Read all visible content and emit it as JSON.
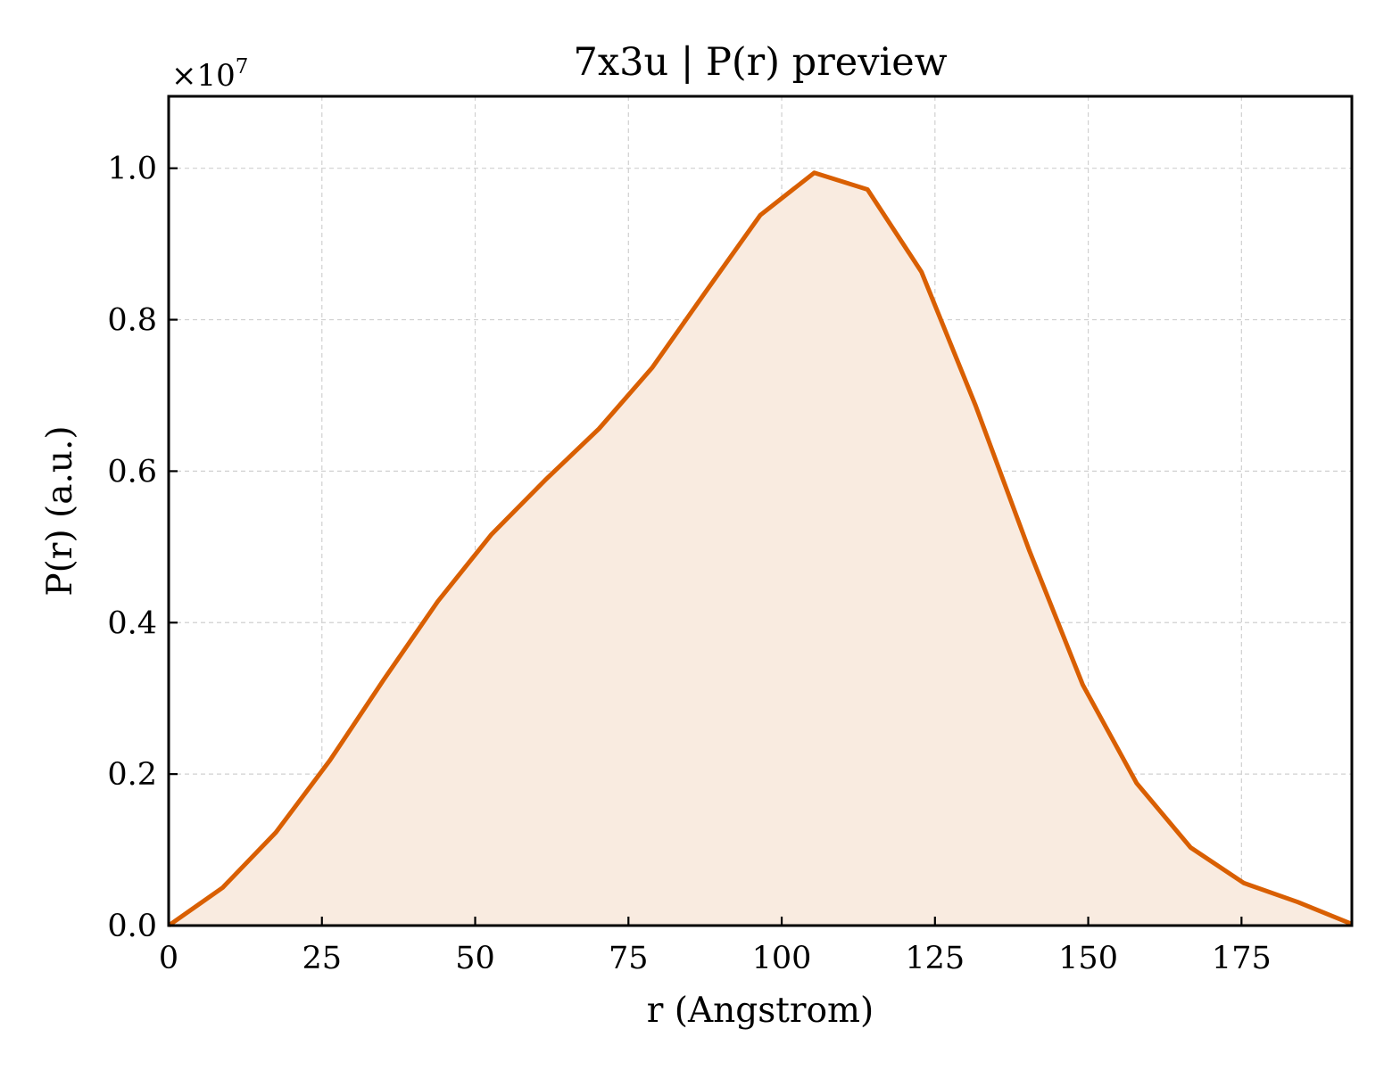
{
  "chart_data": {
    "type": "area",
    "title": "7x3u | P(r) preview",
    "xlabel": "r (Angstrom)",
    "ylabel": "P(r) (a.u.)",
    "y_multiplier_label": "×10⁷",
    "y_multiplier_base": "×10",
    "y_multiplier_exp": "7",
    "xlim": [
      0,
      193
    ],
    "ylim": [
      0,
      1.095
    ],
    "x_ticks": [
      0,
      25,
      50,
      75,
      100,
      125,
      150,
      175
    ],
    "x_tick_labels": [
      "0",
      "25",
      "50",
      "75",
      "100",
      "125",
      "150",
      "175"
    ],
    "y_ticks": [
      0.0,
      0.2,
      0.4,
      0.6,
      0.8,
      1.0
    ],
    "y_tick_labels": [
      "0.0",
      "0.2",
      "0.4",
      "0.6",
      "0.8",
      "1.0"
    ],
    "grid": true,
    "line_color": "#d95f02",
    "fill_color": "#f9ebe0",
    "series": [
      {
        "x": [
          0,
          8.8,
          17.5,
          26.3,
          35.1,
          43.9,
          52.6,
          61.4,
          70.2,
          78.9,
          87.7,
          96.5,
          105.3,
          114.0,
          122.8,
          131.6,
          140.4,
          149.1,
          157.9,
          166.7,
          175.4,
          184.2,
          193.0
        ],
        "values": [
          0.0,
          0.05,
          0.123,
          0.218,
          0.325,
          0.428,
          0.516,
          0.588,
          0.656,
          0.737,
          0.838,
          0.938,
          0.994,
          0.972,
          0.863,
          0.687,
          0.495,
          0.318,
          0.188,
          0.103,
          0.056,
          0.031,
          0.002
        ]
      }
    ]
  }
}
